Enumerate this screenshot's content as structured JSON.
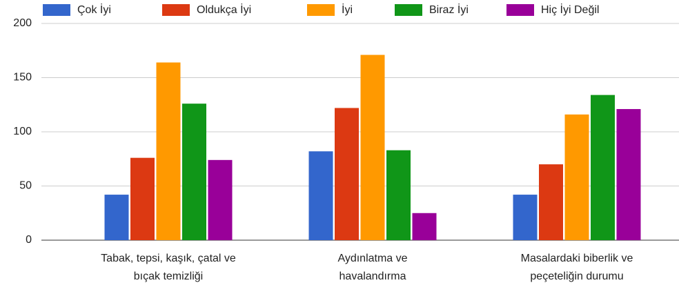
{
  "chart_data": {
    "type": "bar",
    "categories": [
      "Tabak, tepsi, kaşık, çatal ve bıçak temizliği",
      "Aydınlatma ve havalandırma",
      "Masalardaki biberlik ve peçeteliğin durumu"
    ],
    "series": [
      {
        "name": "Çok İyi",
        "color": "#3366cc",
        "values": [
          42,
          82,
          42
        ]
      },
      {
        "name": "Oldukça İyi",
        "color": "#dc3912",
        "values": [
          76,
          122,
          70
        ]
      },
      {
        "name": "İyi",
        "color": "#ff9900",
        "values": [
          164,
          171,
          116
        ]
      },
      {
        "name": "Biraz İyi",
        "color": "#109618",
        "values": [
          126,
          83,
          134
        ]
      },
      {
        "name": "Hiç İyi Değil",
        "color": "#990099",
        "values": [
          74,
          25,
          121
        ]
      }
    ],
    "ylim": [
      0,
      200
    ],
    "yticks": [
      0,
      50,
      100,
      150,
      200
    ],
    "grid": true,
    "legend": "top"
  }
}
